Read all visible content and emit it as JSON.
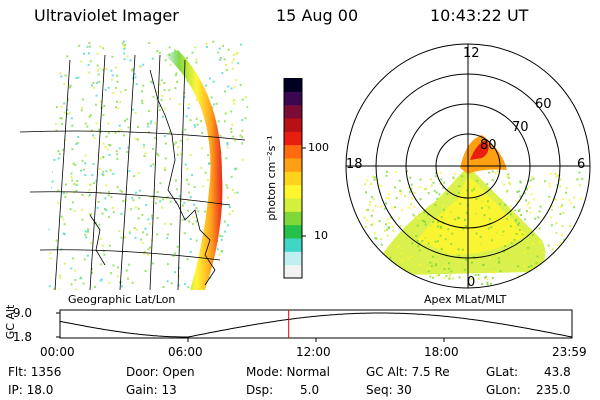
{
  "header": {
    "instrument": "Ultraviolet Imager",
    "date": "15 Aug 00",
    "time": "10:43:22 UT"
  },
  "colorbar": {
    "unit_label": "photon cm⁻²s⁻¹",
    "ticks": [
      "100",
      "10"
    ],
    "colors": [
      "#f2f2f2",
      "#bfeff0",
      "#3fd6c8",
      "#25c04a",
      "#7fd83a",
      "#d6ef3a",
      "#fff62e",
      "#ffd21e",
      "#ffa012",
      "#ff6a0e",
      "#e81e10",
      "#b81016",
      "#7a0c36",
      "#3a0850",
      "#000022"
    ]
  },
  "left_panel": {
    "caption": "Geographic Lat/Lon"
  },
  "polar_panel": {
    "caption": "Apex MLat/MLT",
    "hour_labels": {
      "top": "12",
      "left": "18",
      "right": "6",
      "bottom": "0"
    },
    "lat_labels": [
      "60",
      "70",
      "80"
    ]
  },
  "timeline": {
    "y_title": "GC Alt",
    "y_ticks": [
      "9.0",
      "1.8"
    ],
    "x_ticks": [
      "00:00",
      "06:00",
      "12:00",
      "18:00",
      "23:59"
    ],
    "current_time_hours": 10.72,
    "colors": {
      "curve": "#000000",
      "marker": "#e00000"
    }
  },
  "status": {
    "flt": "Flt: 1356",
    "ip": "IP: 18.0",
    "door": "Door: Open",
    "gain": "Gain: 13",
    "mode": "Mode: Normal",
    "dsp_label": "Dsp:",
    "dsp_value": "5.0",
    "gc_alt": "GC Alt: 7.5 Re",
    "seq": "Seq: 30",
    "glat_label": "GLat:",
    "glat_value": "43.8",
    "glon_label": "GLon:",
    "glon_value": "235.0"
  }
}
